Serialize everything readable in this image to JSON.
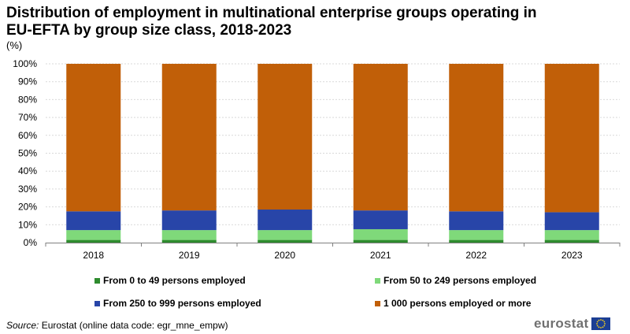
{
  "title": "Distribution of employment in multinational enterprise groups operating in EU-EFTA by group size class, 2018-2023",
  "unit_label": "(%)",
  "source": {
    "label": "Source:",
    "text": "Eurostat (online data code: egr_mne_empw)"
  },
  "logo": {
    "text": "eurostat",
    "icon": "eu-flag-icon"
  },
  "colors": {
    "from_0_49": "#2e8b2e",
    "from_50_249": "#7fd97a",
    "from_250_999": "#2845a8",
    "from_1000": "#c15f08",
    "grid": "#d9d9d9",
    "axis": "#808080"
  },
  "chart_data": {
    "type": "bar",
    "stacked": true,
    "percent": true,
    "categories": [
      "2018",
      "2019",
      "2020",
      "2021",
      "2022",
      "2023"
    ],
    "series": [
      {
        "name": "From 0 to 49 persons employed",
        "values": [
          1.5,
          1.5,
          1.5,
          1.5,
          1.5,
          1.5
        ]
      },
      {
        "name": "From 50 to 249 persons employed",
        "values": [
          5.5,
          5.5,
          5.5,
          6.0,
          5.5,
          5.5
        ]
      },
      {
        "name": "From 250 to 999 persons employed",
        "values": [
          10.5,
          11.0,
          11.5,
          10.5,
          10.5,
          10.0
        ]
      },
      {
        "name": "1 000 persons employed or more",
        "values": [
          82.5,
          82.0,
          81.5,
          82.0,
          82.5,
          83.0
        ]
      }
    ],
    "ylim": [
      0,
      100
    ],
    "yticks": [
      "0%",
      "10%",
      "20%",
      "30%",
      "40%",
      "50%",
      "60%",
      "70%",
      "80%",
      "90%",
      "100%"
    ],
    "grid": true,
    "legend_position": "bottom"
  }
}
